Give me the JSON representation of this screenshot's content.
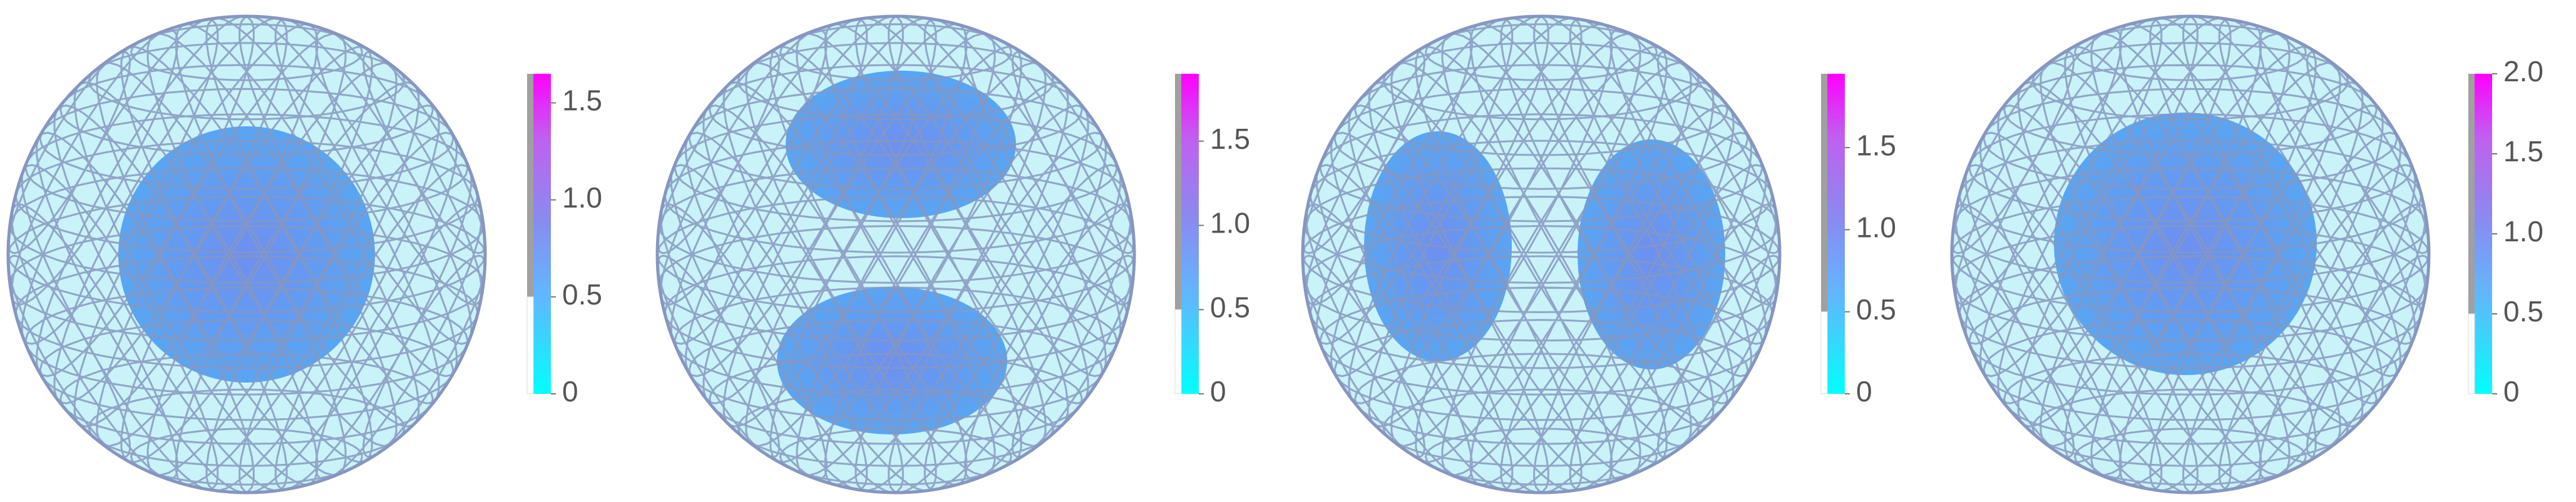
{
  "panels": [
    {
      "colorbar": {
        "range": [
          0,
          1.65
        ],
        "threshold": 0.5,
        "ticks": [
          0,
          0.5,
          {
            "value": 1,
            "label": "1.0"
          },
          1.5
        ]
      }
    },
    {
      "colorbar": {
        "range": [
          0,
          1.9
        ],
        "threshold": 0.5,
        "ticks": [
          0,
          0.5,
          {
            "value": 1,
            "label": "1.0"
          },
          1.5
        ]
      }
    },
    {
      "colorbar": {
        "range": [
          0,
          1.95
        ],
        "threshold": 0.5,
        "ticks": [
          0,
          0.5,
          {
            "value": 1,
            "label": "1.0"
          },
          1.5
        ]
      }
    },
    {
      "colorbar": {
        "range": [
          0,
          2
        ],
        "threshold": 0.5,
        "ticks": [
          0,
          0.5,
          {
            "value": 1,
            "label": "1.0"
          },
          1.5,
          {
            "value": 2,
            "label": "2.0"
          }
        ]
      }
    }
  ]
}
